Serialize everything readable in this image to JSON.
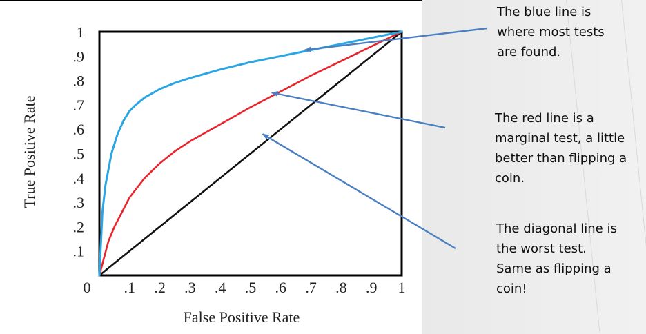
{
  "chart_data": {
    "type": "line",
    "xlabel": "False Positive Rate",
    "ylabel": "True Positive Rate",
    "xlim": [
      0,
      1
    ],
    "ylim": [
      0,
      1
    ],
    "x_ticks": [
      "0",
      ".1",
      ".2",
      ".3",
      ".4",
      ".5",
      ".6",
      ".7",
      ".8",
      ".9",
      "1"
    ],
    "y_ticks": [
      "1",
      ".9",
      ".8",
      ".7",
      ".6",
      ".5",
      ".4",
      ".3",
      ".2",
      ".1"
    ],
    "grid": false,
    "legend": "none",
    "series": [
      {
        "color": "#29a6e3",
        "x": [
          0,
          0.01,
          0.02,
          0.04,
          0.06,
          0.08,
          0.1,
          0.12,
          0.15,
          0.2,
          0.25,
          0.3,
          0.4,
          0.5,
          0.6,
          0.7,
          0.8,
          0.9,
          1.0
        ],
        "y": [
          0,
          0.26,
          0.37,
          0.5,
          0.58,
          0.635,
          0.675,
          0.7,
          0.73,
          0.765,
          0.79,
          0.81,
          0.845,
          0.875,
          0.9,
          0.925,
          0.95,
          0.975,
          1.0
        ]
      },
      {
        "color": "#e8232b",
        "x": [
          0,
          0.03,
          0.05,
          0.1,
          0.15,
          0.2,
          0.25,
          0.3,
          0.4,
          0.5,
          0.6,
          0.7,
          0.8,
          0.9,
          1.0
        ],
        "y": [
          0,
          0.14,
          0.2,
          0.32,
          0.4,
          0.46,
          0.51,
          0.55,
          0.62,
          0.69,
          0.755,
          0.82,
          0.88,
          0.94,
          1.0
        ]
      },
      {
        "color": "#111111",
        "x": [
          0,
          1
        ],
        "y": [
          0,
          1
        ]
      }
    ]
  },
  "annotations": [
    {
      "lines": [
        "The blue line is",
        "where most tests",
        "are found."
      ],
      "arrow_to": [
        0.68,
        0.925
      ],
      "color": "#4a7fc1"
    },
    {
      "lines": [
        "The red line is a",
        "marginal test, a little",
        "better than flipping a",
        "coin."
      ],
      "arrow_to": [
        0.57,
        0.75
      ],
      "color": "#4a7fc1"
    },
    {
      "lines": [
        "The diagonal line is",
        "the worst test.",
        "Same as flipping a",
        "coin!"
      ],
      "arrow_to": [
        0.54,
        0.58
      ],
      "color": "#4a7fc1"
    }
  ]
}
